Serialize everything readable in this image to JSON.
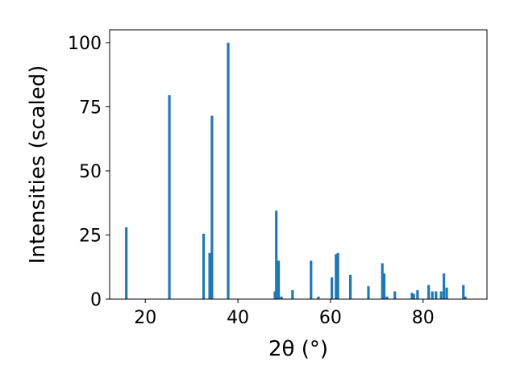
{
  "chart_data": {
    "type": "bar",
    "title": "",
    "xlabel": "2θ (°)",
    "ylabel": "Intensities (scaled)",
    "xlim": [
      12.3,
      93.8
    ],
    "ylim": [
      0,
      105
    ],
    "xticks": [
      20,
      40,
      60,
      80
    ],
    "yticks": [
      0,
      25,
      50,
      75,
      100
    ],
    "grid": false,
    "bar_color": "#1f77b4",
    "x": [
      15.9,
      25.2,
      32.6,
      33.9,
      34.4,
      37.9,
      48.0,
      48.3,
      48.8,
      49.4,
      51.8,
      55.8,
      57.4,
      60.3,
      61.2,
      61.6,
      64.3,
      68.2,
      71.2,
      71.6,
      72.2,
      73.9,
      77.6,
      78.0,
      78.8,
      81.2,
      82.0,
      82.8,
      83.9,
      84.5,
      85.1,
      88.7,
      89.1
    ],
    "values": [
      28,
      79.5,
      25.5,
      18,
      71.5,
      100,
      3,
      34.5,
      15,
      1,
      3.5,
      15,
      1,
      8.5,
      17.5,
      18,
      9.5,
      5,
      14,
      10,
      1,
      3,
      2.5,
      2,
      3.5,
      5.5,
      3,
      3,
      3,
      10,
      4.5,
      5.5,
      1
    ]
  }
}
